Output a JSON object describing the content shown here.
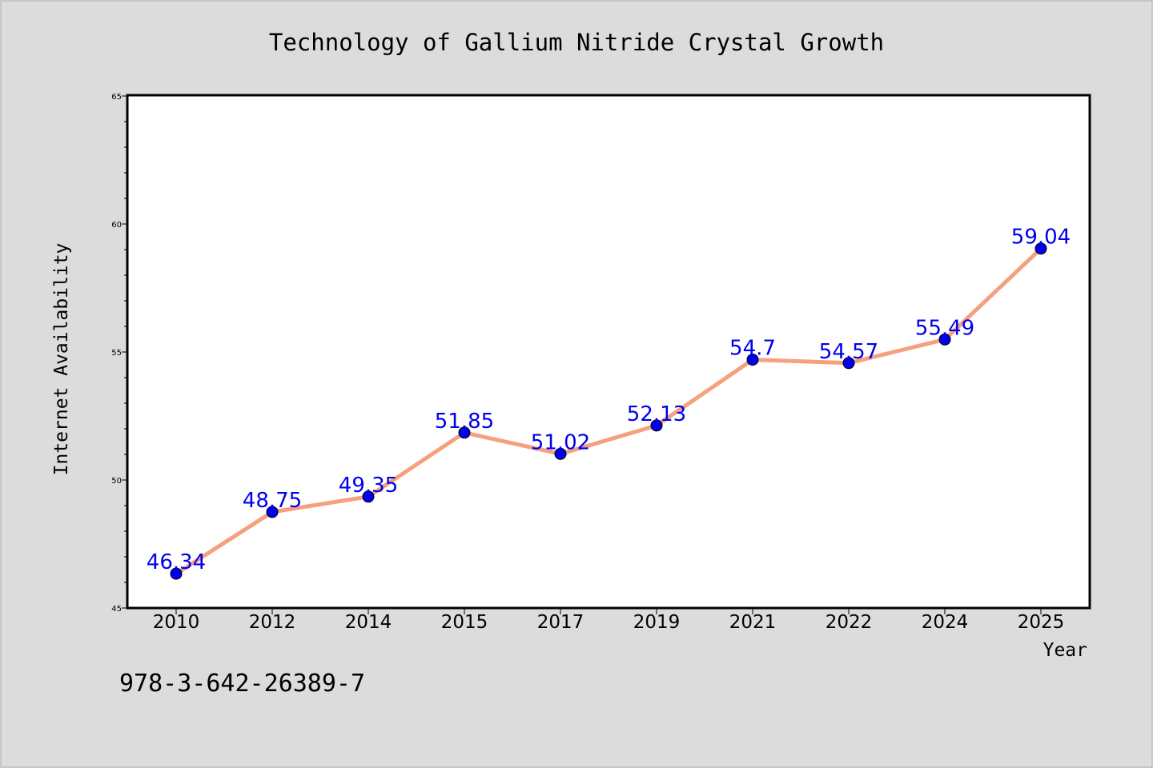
{
  "chart_data": {
    "type": "line",
    "title": "Technology of Gallium Nitride Crystal Growth",
    "xlabel": "Year",
    "ylabel": "Internet Availability",
    "categories": [
      "2010",
      "2012",
      "2014",
      "2015",
      "2017",
      "2019",
      "2021",
      "2022",
      "2024",
      "2025"
    ],
    "values": [
      46.34,
      48.75,
      49.35,
      51.85,
      51.02,
      52.13,
      54.7,
      54.57,
      55.49,
      59.04
    ],
    "data_labels": [
      "46.34",
      "48.75",
      "49.35",
      "51.85",
      "51.02",
      "52.13",
      "54.7",
      "54.57",
      "55.49",
      "59.04"
    ],
    "ylim": [
      45,
      65
    ],
    "yticks": [
      45,
      50,
      55,
      60,
      65
    ],
    "grid": false,
    "legend": "none",
    "colors": {
      "line": "#f5a07f",
      "marker": "#0000ee",
      "label": "#0000ee",
      "background": "#dcdcdc",
      "plot_background": "#ffffff"
    }
  },
  "footer": {
    "isbn": "978-3-642-26389-7"
  }
}
